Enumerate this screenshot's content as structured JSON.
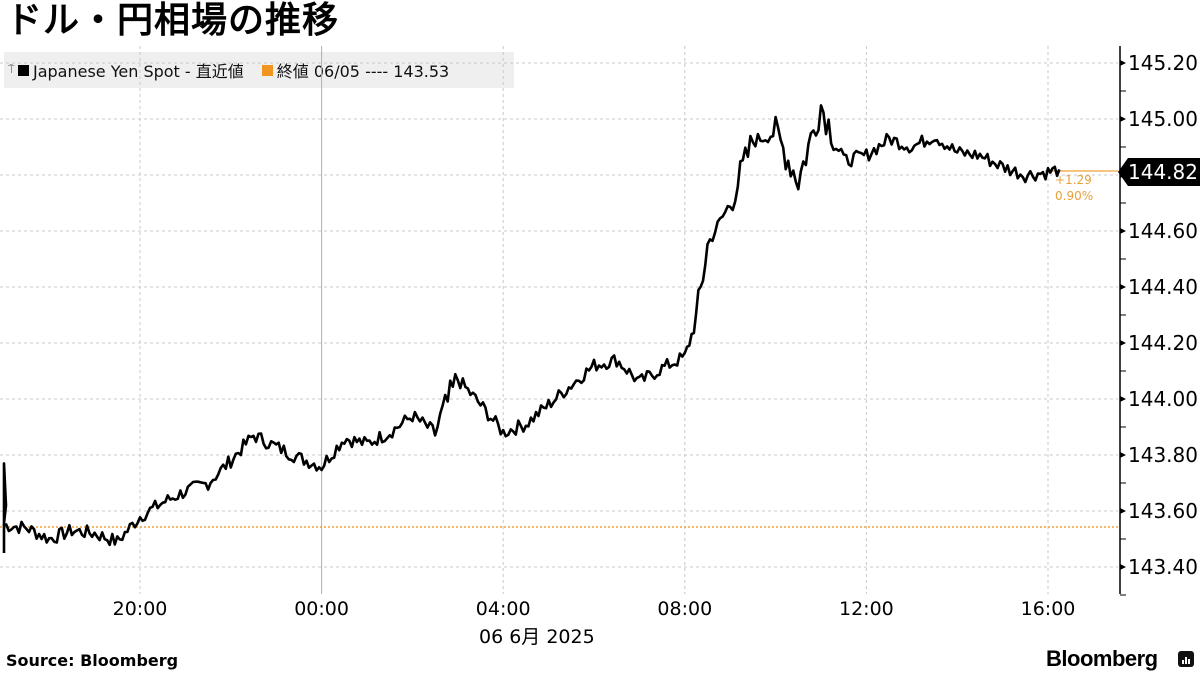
{
  "title": "ドル・円相場の推移",
  "legend": {
    "series1_label": "Japanese Yen Spot - 直近値",
    "series1_color": "#000000",
    "series2_label": "終値 06/05 ---- 143.53",
    "series2_color": "#f0961e"
  },
  "last_value": {
    "label": "144.82",
    "change": "+1.29",
    "change_pct": "0.90%"
  },
  "y_axis": {
    "ticks": [
      "145.20",
      "145.00",
      "144.80",
      "144.60",
      "144.40",
      "144.20",
      "144.00",
      "143.80",
      "143.60",
      "143.40"
    ]
  },
  "x_axis": {
    "ticks": [
      "20:00",
      "00:00",
      "04:00",
      "08:00",
      "12:00",
      "16:00"
    ],
    "date_label": "06 6月 2025"
  },
  "footer": {
    "source": "Source:  Bloomberg",
    "brand": "Bloomberg"
  },
  "chart_data": {
    "type": "line",
    "title": "ドル・円相場の推移",
    "series": [
      {
        "name": "Japanese Yen Spot - 直近値",
        "x": [
          "17:00",
          "17:30",
          "18:00",
          "18:30",
          "19:00",
          "19:30",
          "20:00",
          "20:30",
          "21:00",
          "21:30",
          "22:00",
          "22:30",
          "23:00",
          "23:30",
          "00:00",
          "00:30",
          "01:00",
          "01:30",
          "02:00",
          "02:30",
          "03:00",
          "03:30",
          "04:00",
          "04:30",
          "05:00",
          "05:30",
          "06:00",
          "06:30",
          "07:00",
          "07:30",
          "08:00",
          "08:15",
          "08:30",
          "09:00",
          "09:30",
          "10:00",
          "10:30",
          "11:00",
          "11:30",
          "12:00",
          "12:30",
          "13:00",
          "13:30",
          "14:00",
          "14:30",
          "15:00",
          "15:30",
          "16:00",
          "16:15"
        ],
        "values": [
          143.55,
          143.54,
          143.5,
          143.53,
          143.52,
          143.49,
          143.58,
          143.63,
          143.67,
          143.7,
          143.78,
          143.87,
          143.83,
          143.79,
          143.76,
          143.86,
          143.84,
          143.88,
          143.94,
          143.88,
          144.07,
          143.98,
          143.88,
          143.91,
          143.98,
          144.05,
          144.12,
          144.14,
          144.06,
          144.11,
          144.15,
          144.28,
          144.55,
          144.7,
          144.92,
          144.95,
          144.78,
          145.05,
          144.85,
          144.87,
          144.93,
          144.9,
          144.94,
          144.88,
          144.87,
          144.83,
          144.8,
          144.81,
          144.82
        ]
      },
      {
        "name": "終値 06/05",
        "values": [
          143.53
        ],
        "style": "dotted horizontal"
      }
    ],
    "xlabel": "06 6月 2025",
    "ylabel": "",
    "ylim": [
      143.3,
      145.3
    ],
    "y_ticks": [
      143.4,
      143.6,
      143.8,
      144.0,
      144.2,
      144.4,
      144.6,
      144.8,
      145.0,
      145.2
    ],
    "x_ticks": [
      "20:00",
      "00:00",
      "04:00",
      "08:00",
      "12:00",
      "16:00"
    ],
    "last_value": 144.82,
    "change": 1.29,
    "change_pct": 0.9,
    "grid": true,
    "legend_position": "top-left"
  }
}
